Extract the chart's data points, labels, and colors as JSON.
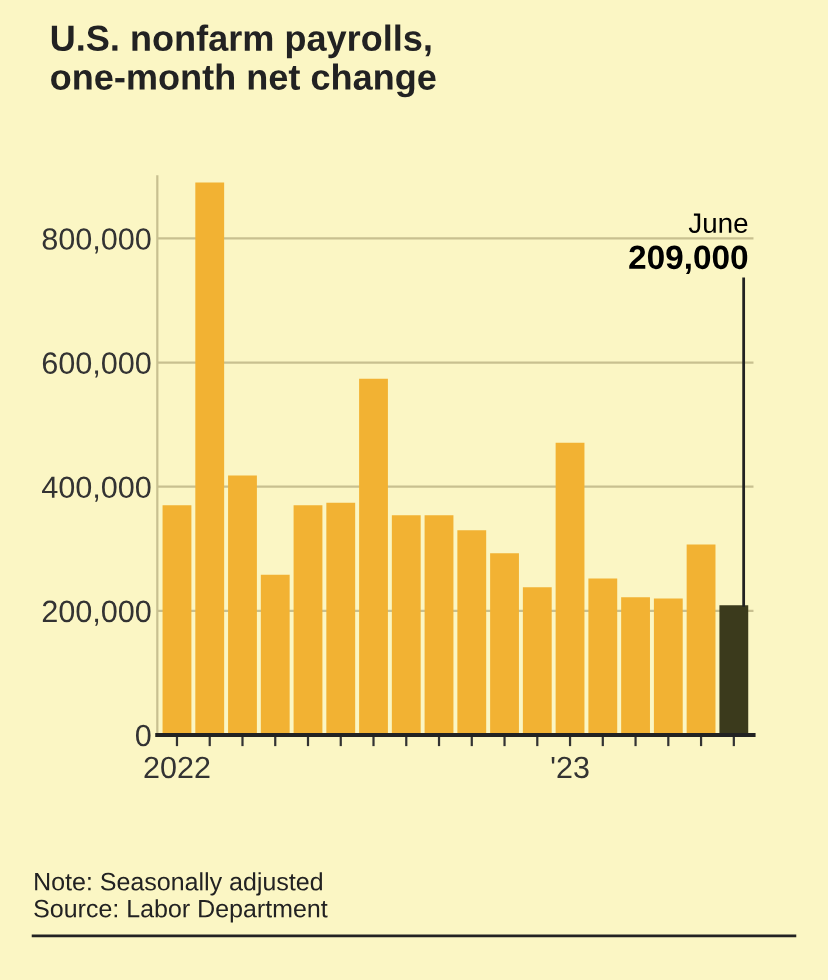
{
  "chart_data": {
    "type": "bar",
    "title": "U.S. nonfarm payrolls,\none-month net change",
    "categories": [
      "2022",
      null,
      null,
      null,
      null,
      null,
      null,
      null,
      null,
      null,
      null,
      null,
      "'23",
      null,
      null,
      null,
      null,
      null
    ],
    "values": [
      370000,
      890000,
      418000,
      258000,
      370000,
      374000,
      574000,
      354000,
      354000,
      330000,
      293000,
      238000,
      471000,
      252000,
      222000,
      220000,
      307000,
      209000
    ],
    "colors": [
      "#f2b233",
      "#f2b233",
      "#f2b233",
      "#f2b233",
      "#f2b233",
      "#f2b233",
      "#f2b233",
      "#f2b233",
      "#f2b233",
      "#f2b233",
      "#f2b233",
      "#f2b233",
      "#f2b233",
      "#f2b233",
      "#f2b233",
      "#f2b233",
      "#f2b233",
      "#3b3a1c"
    ],
    "ylim": [
      0,
      900000
    ],
    "yticks": [
      {
        "value": 0,
        "label": "0"
      },
      {
        "value": 200000,
        "label": "200,000"
      },
      {
        "value": 400000,
        "label": "400,000"
      },
      {
        "value": 600000,
        "label": "600,000"
      },
      {
        "value": 800000,
        "label": "800,000"
      }
    ],
    "grid": "y",
    "annotations": [
      "June\n209,000",
      "Note: Seasonally adjusted\nSource: Labor Department"
    ]
  }
}
